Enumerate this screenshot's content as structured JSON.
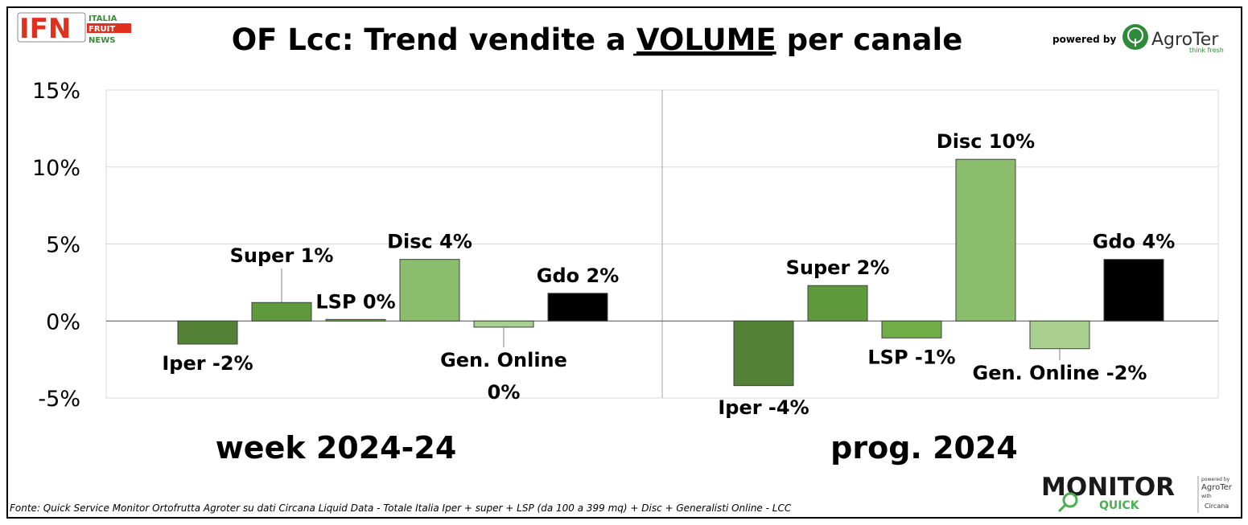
{
  "title": {
    "before": "OF Lcc: Trend vendite a ",
    "emphasis": "VOLUME",
    "after": " per canale"
  },
  "logo_ifn": {
    "letters": "IFN",
    "line1": "ITALIA",
    "line2": "FRUIT",
    "line3": "NEWS",
    "colors": {
      "red": "#e0301e",
      "green": "#3a8a3a"
    }
  },
  "logo_agroter": {
    "powered_by": "powered by",
    "name": "AgroTer",
    "tagline": "think fresh",
    "color": "#2e8b3a"
  },
  "logo_monitor": {
    "word": "MONITOR",
    "sub": "QUICK",
    "powered_by": "powered by",
    "brand": "AgroTer",
    "with": "with",
    "partner": "Circana"
  },
  "footer": "Fonte: Quick Service Monitor Ortofrutta Agroter su dati Circana Liquid Data - Totale Italia Iper + super + LSP (da 100 a 399 mq) + Disc + Generalisti Online - LCC",
  "chart_data": {
    "type": "bar",
    "ylim": [
      -5,
      15
    ],
    "y_ticks": [
      -5,
      0,
      5,
      10,
      15
    ],
    "y_tick_labels": [
      "-5%",
      "0%",
      "5%",
      "10%",
      "15%"
    ],
    "grid": true,
    "categories": [
      "Iper",
      "Super",
      "LSP",
      "Disc",
      "Gen. Online",
      "Gdo"
    ],
    "colors": {
      "Iper": "#538135",
      "Super": "#5e9a3c",
      "LSP": "#70ad47",
      "Disc": "#8abe6c",
      "Gen. Online": "#a9d08e",
      "Gdo": "#000000"
    },
    "groups": [
      {
        "label": "week 2024-24",
        "values": [
          -1.5,
          1.2,
          0.1,
          4.0,
          -0.4,
          1.8
        ],
        "data_labels": [
          "Iper -2%",
          "Super 1%",
          "LSP 0%",
          "Disc 4%",
          "Gen. Online\n0%",
          "Gdo 2%"
        ]
      },
      {
        "label": "prog. 2024",
        "values": [
          -4.2,
          2.3,
          -1.1,
          10.5,
          -1.8,
          4.0
        ],
        "data_labels": [
          "Iper -4%",
          "Super 2%",
          "LSP -1%",
          "Disc 10%",
          "Gen. Online -2%",
          "Gdo 4%"
        ]
      }
    ]
  }
}
